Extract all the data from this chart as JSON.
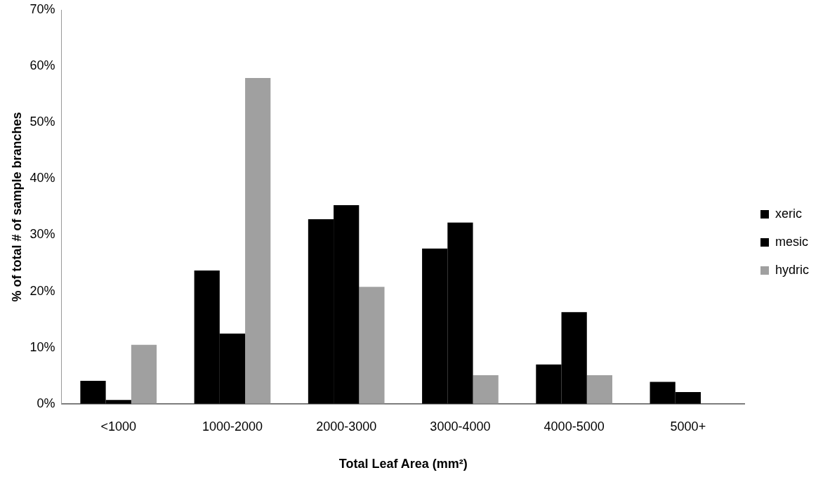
{
  "chart_data": {
    "type": "bar",
    "xlabel": "Total Leaf Area (mm²)",
    "ylabel": "% of total # of sample branches",
    "categories": [
      "<1000",
      "1000-2000",
      "2000-3000",
      "3000-4000",
      "4000-5000",
      "5000+"
    ],
    "series": [
      {
        "name": "xeric",
        "color": "#000000",
        "values": [
          4.1,
          23.7,
          32.8,
          27.6,
          7.0,
          3.9
        ]
      },
      {
        "name": "mesic",
        "color": "#000000",
        "values": [
          0.7,
          12.5,
          35.3,
          32.2,
          16.3,
          2.1
        ]
      },
      {
        "name": "hydric",
        "color": "#a0a0a0",
        "values": [
          10.5,
          57.9,
          20.8,
          5.1,
          5.1,
          0
        ]
      }
    ],
    "ylim": [
      0,
      70
    ],
    "yticks": [
      {
        "value": 0,
        "label": "0%"
      },
      {
        "value": 10,
        "label": "10%"
      },
      {
        "value": 20,
        "label": "20%"
      },
      {
        "value": 30,
        "label": "30%"
      },
      {
        "value": 40,
        "label": "40%"
      },
      {
        "value": 50,
        "label": "50%"
      },
      {
        "value": 60,
        "label": "60%"
      },
      {
        "value": 70,
        "label": "70%"
      }
    ],
    "grid": false,
    "legend": "right"
  }
}
